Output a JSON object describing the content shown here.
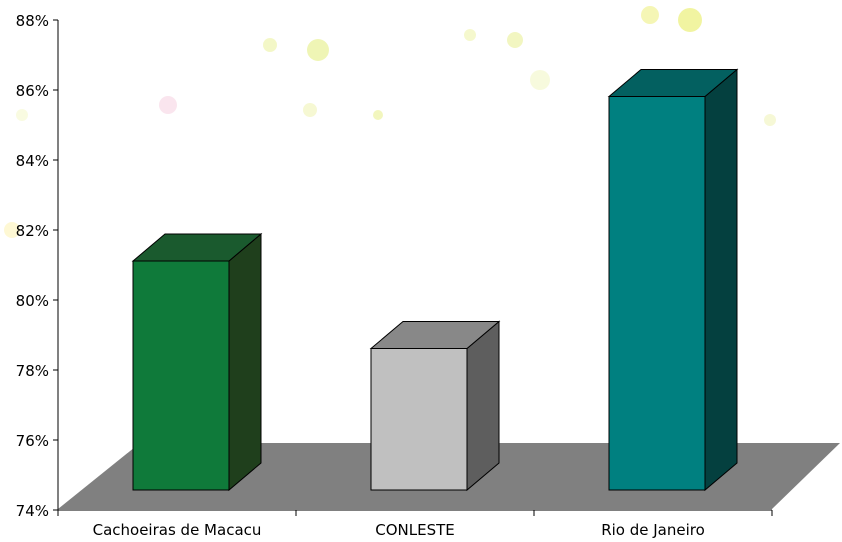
{
  "chart_data": {
    "type": "bar",
    "style": "3d",
    "categories": [
      "Cachoeiras de Macacu",
      "CONLESTE",
      "Rio de Janeiro"
    ],
    "values": [
      81.8,
      79.3,
      86.5
    ],
    "value_format": "percent",
    "ylim": [
      74,
      88
    ],
    "yticks": [
      74,
      76,
      78,
      80,
      82,
      84,
      86,
      88
    ],
    "ytick_labels": [
      "74%",
      "76%",
      "78%",
      "80%",
      "82%",
      "84%",
      "86%",
      "88%"
    ],
    "title": "",
    "xlabel": "",
    "ylabel": "",
    "grid": false,
    "legend": "none",
    "bar_colors": [
      {
        "front": "#0f7a3a",
        "side": "#1f3f1c",
        "top": "#1a5a2e"
      },
      {
        "front": "#c0c0c0",
        "side": "#5e5e5e",
        "top": "#888888"
      },
      {
        "front": "#008080",
        "side": "#04403f",
        "top": "#036060"
      }
    ],
    "floor_color": "#808080",
    "background": "#ffffff"
  }
}
